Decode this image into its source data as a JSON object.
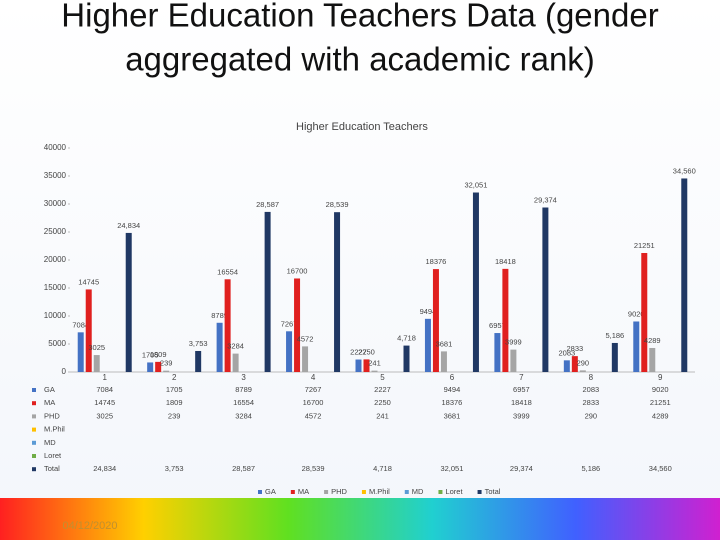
{
  "slide_title": "Higher Education Teachers Data (gender aggregated with academic rank)",
  "footer_date": "04/12/2020",
  "chart_data": {
    "type": "bar",
    "title": "Higher Education Teachers",
    "categories": [
      "1",
      "2",
      "3",
      "4",
      "5",
      "6",
      "7",
      "8",
      "9"
    ],
    "ylim": [
      0,
      40000
    ],
    "yticks": [
      0,
      5000,
      10000,
      15000,
      20000,
      25000,
      30000,
      35000,
      40000
    ],
    "legend": "bottom",
    "series": [
      {
        "name": "GA",
        "color": "#4472c4",
        "values": [
          7084,
          1705,
          8789,
          7267,
          2227,
          9494,
          6957,
          2083,
          9020
        ]
      },
      {
        "name": "MA",
        "color": "#e0201f",
        "values": [
          14745,
          1809,
          16554,
          16700,
          2250,
          18376,
          18418,
          2833,
          21251
        ]
      },
      {
        "name": "PHD",
        "color": "#a5a5a5",
        "values": [
          3025,
          239,
          3284,
          4572,
          241,
          3681,
          3999,
          290,
          4289
        ]
      },
      {
        "name": "M.Phil",
        "color": "#ffc000",
        "values": [
          null,
          null,
          null,
          null,
          null,
          null,
          null,
          null,
          null
        ]
      },
      {
        "name": "MD",
        "color": "#5b9bd5",
        "values": [
          null,
          null,
          null,
          null,
          null,
          null,
          null,
          null,
          null
        ]
      },
      {
        "name": "Loret",
        "color": "#70ad47",
        "values": [
          null,
          null,
          null,
          null,
          null,
          null,
          null,
          null,
          null
        ]
      },
      {
        "name": "Total",
        "color": "#203864",
        "values": [
          24834,
          3753,
          28587,
          28539,
          4718,
          32051,
          29374,
          5186,
          34560
        ],
        "value_labels": [
          "24,834",
          "3,753",
          "28,587",
          "28,539",
          "4,718",
          "32,051",
          "29,374",
          "5,186",
          "34,560"
        ]
      }
    ]
  }
}
